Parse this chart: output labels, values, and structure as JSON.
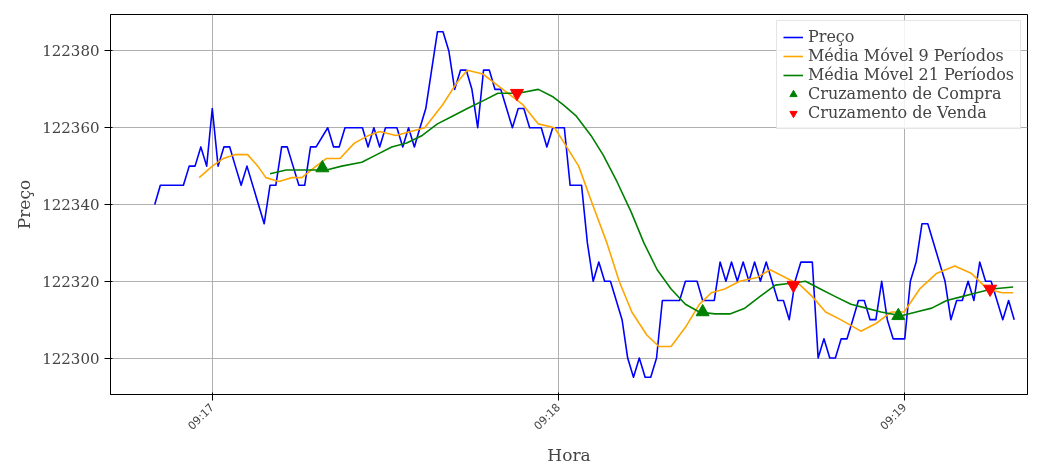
{
  "chart_data": {
    "type": "line",
    "xlabel": "Hora",
    "ylabel": "Preço",
    "xlim": [
      9.27843,
      9.32258
    ],
    "ylim": [
      122290.5,
      122389.5
    ],
    "xticks": [
      {
        "value": 9.283333,
        "label": "09:17"
      },
      {
        "value": 9.3,
        "label": "09:18"
      },
      {
        "value": 9.316667,
        "label": "09:19"
      }
    ],
    "yticks": [
      122300,
      122320,
      122340,
      122360,
      122380
    ],
    "grid": true,
    "legend": "top right",
    "line_style": "solid",
    "series": [
      {
        "name": "Preço",
        "color": "#0000ff",
        "marker": "none",
        "x": [
          9.28056,
          9.28083,
          9.28194,
          9.28222,
          9.2825,
          9.28278,
          9.28306,
          9.28333,
          9.28361,
          9.28389,
          9.28417,
          9.28444,
          9.28472,
          9.285,
          9.28583,
          9.28611,
          9.28639,
          9.28667,
          9.28694,
          9.28722,
          9.2875,
          9.28778,
          9.28806,
          9.28833,
          9.28889,
          9.28917,
          9.28944,
          9.28972,
          9.29056,
          9.29083,
          9.29111,
          9.29139,
          9.29167,
          9.29222,
          9.2925,
          9.29278,
          9.29306,
          9.29333,
          9.29361,
          9.29389,
          9.29417,
          9.29444,
          9.29472,
          9.295,
          9.29528,
          9.29556,
          9.29583,
          9.29611,
          9.29639,
          9.29667,
          9.29694,
          9.29722,
          9.2975,
          9.29778,
          9.29806,
          9.29833,
          9.29861,
          9.29917,
          9.29944,
          9.29972,
          9.30028,
          9.30056,
          9.30111,
          9.30139,
          9.30167,
          9.30194,
          9.30222,
          9.3025,
          9.30306,
          9.30333,
          9.30361,
          9.30389,
          9.30417,
          9.30444,
          9.30472,
          9.305,
          9.30583,
          9.30611,
          9.30667,
          9.30694,
          9.3075,
          9.30778,
          9.30806,
          9.30833,
          9.30861,
          9.30889,
          9.30917,
          9.30944,
          9.30972,
          9.31,
          9.31028,
          9.31056,
          9.31083,
          9.31111,
          9.31139,
          9.31167,
          9.31222,
          9.3125,
          9.31278,
          9.31306,
          9.31333,
          9.31361,
          9.31389,
          9.31417,
          9.31444,
          9.31472,
          9.315,
          9.31528,
          9.31556,
          9.31583,
          9.31611,
          9.31667,
          9.31694,
          9.31722,
          9.3175,
          9.31778,
          9.31861,
          9.31889,
          9.31917,
          9.31944,
          9.31972,
          9.32,
          9.32028,
          9.32056,
          9.32083,
          9.32111,
          9.32139,
          9.32167,
          9.32194
        ],
        "values": [
          122340,
          122345,
          122345,
          122350,
          122350,
          122355,
          122350,
          122365,
          122350,
          122355,
          122355,
          122350,
          122345,
          122350,
          122335,
          122345,
          122345,
          122355,
          122355,
          122350,
          122345,
          122345,
          122355,
          122355,
          122360,
          122355,
          122355,
          122360,
          122360,
          122355,
          122360,
          122355,
          122360,
          122360,
          122355,
          122360,
          122355,
          122360,
          122365,
          122375,
          122385,
          122385,
          122380,
          122370,
          122375,
          122375,
          122370,
          122360,
          122375,
          122375,
          122370,
          122370,
          122365,
          122360,
          122365,
          122365,
          122360,
          122360,
          122355,
          122360,
          122360,
          122345,
          122345,
          122330,
          122320,
          122325,
          122320,
          122320,
          122310,
          122300,
          122295,
          122300,
          122295,
          122295,
          122300,
          122315,
          122315,
          122320,
          122320,
          122315,
          122315,
          122325,
          122320,
          122325,
          122320,
          122325,
          122320,
          122325,
          122320,
          122325,
          122320,
          122315,
          122315,
          122310,
          122320,
          122325,
          122325,
          122300,
          122305,
          122300,
          122300,
          122305,
          122305,
          122310,
          122315,
          122315,
          122310,
          122310,
          122320,
          122310,
          122305,
          122305,
          122320,
          122325,
          122335,
          122335,
          122320,
          122310,
          122315,
          122315,
          122320,
          122315,
          122325,
          122320,
          122320,
          122315,
          122310,
          122315,
          122310
        ]
      },
      {
        "name": "Média Móvel 9 Períodos",
        "color": "#ffa500",
        "marker": "none",
        "x": [
          9.2827,
          9.28333,
          9.28387,
          9.28444,
          9.28503,
          9.28552,
          9.28591,
          9.28653,
          9.28717,
          9.28764,
          9.28833,
          9.28883,
          9.28948,
          9.29017,
          9.29086,
          9.29139,
          9.29217,
          9.29289,
          9.29356,
          9.29442,
          9.29514,
          9.29561,
          9.29636,
          9.29708,
          9.29781,
          9.29828,
          9.29903,
          9.29981,
          9.30028,
          9.30097,
          9.30164,
          9.30233,
          9.30292,
          9.30353,
          9.30425,
          9.30483,
          9.30542,
          9.30611,
          9.30678,
          9.30736,
          9.308,
          9.30872,
          9.30956,
          9.31019,
          9.31092,
          9.31164,
          9.31222,
          9.31286,
          9.31358,
          9.31456,
          9.31528,
          9.31603,
          9.31664,
          9.31739,
          9.31819,
          9.31908,
          9.31989,
          9.32064,
          9.32136,
          9.32189
        ],
        "values": [
          122347,
          122350,
          122352,
          122353,
          122353,
          122350,
          122347,
          122346,
          122347,
          122347,
          122350,
          122352,
          122352,
          122356,
          122358,
          122359,
          122358,
          122359,
          122360,
          122366,
          122372,
          122375,
          122374,
          122371,
          122368,
          122366,
          122361,
          122360,
          122356,
          122350,
          122340,
          122330,
          122320,
          122312,
          122306,
          122303,
          122303,
          122308,
          122314,
          122317,
          122318,
          122320,
          122321,
          122323,
          122321,
          122319,
          122316,
          122312,
          122310,
          122307,
          122309,
          122312,
          122312,
          122318,
          122322,
          122324,
          122322,
          122318,
          122317,
          122317
        ]
      },
      {
        "name": "Média Móvel 21 Períodos",
        "color": "#008000",
        "marker": "none",
        "x": [
          9.28611,
          9.28689,
          9.28786,
          9.28883,
          9.28956,
          9.29053,
          9.29125,
          9.29197,
          9.29269,
          9.29344,
          9.29417,
          9.29489,
          9.29561,
          9.29636,
          9.29708,
          9.29806,
          9.29903,
          9.29975,
          9.30022,
          9.30086,
          9.30156,
          9.30214,
          9.30281,
          9.3035,
          9.30411,
          9.30475,
          9.30542,
          9.30611,
          9.30678,
          9.30753,
          9.30825,
          9.30897,
          9.30969,
          9.31044,
          9.31117,
          9.31189,
          9.31261,
          9.31333,
          9.31408,
          9.31481,
          9.31553,
          9.3165,
          9.31722,
          9.31797,
          9.31869,
          9.31942,
          9.32014,
          9.32086,
          9.32189
        ],
        "values": [
          122348,
          122349,
          122349,
          122349,
          122350,
          122351,
          122353,
          122355,
          122356,
          122358,
          122361,
          122363,
          122365,
          122367,
          122369,
          122369,
          122370,
          122368,
          122366,
          122363,
          122358,
          122353,
          122346,
          122338,
          122330,
          122323,
          122318,
          122314,
          122312,
          122311.5,
          122311.5,
          122313,
          122316,
          122319,
          122319.5,
          122320,
          122318,
          122316,
          122314,
          122313,
          122312,
          122311,
          122312,
          122313,
          122315,
          122316,
          122317,
          122318,
          122318.5
        ]
      },
      {
        "name": "Cruzamento de Compra",
        "color": "#008000",
        "type": "scatter",
        "marker": "triangle",
        "x": [
          9.28863,
          9.30694,
          9.31636
        ],
        "values": [
          122349.5,
          122312,
          122311
        ]
      },
      {
        "name": "Cruzamento de Venda",
        "color": "#ff0000",
        "type": "scatter",
        "marker": "triangle_down",
        "x": [
          9.298,
          9.31131,
          9.32078
        ],
        "values": [
          122369,
          122319,
          122318
        ]
      }
    ]
  }
}
